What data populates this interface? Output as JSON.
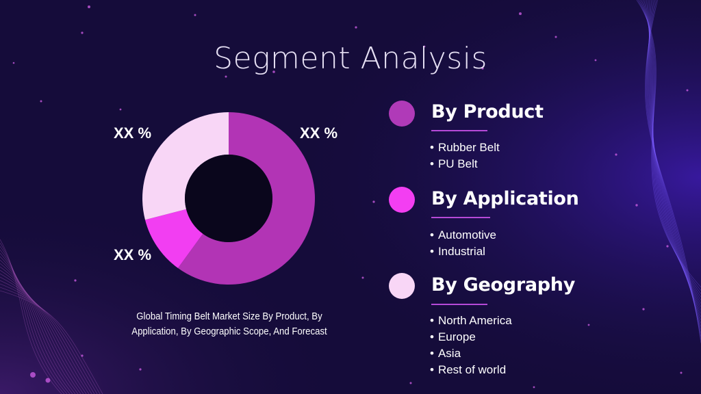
{
  "title": "Segment Analysis",
  "chart_data": {
    "type": "pie",
    "subtype": "donut",
    "slices": [
      {
        "label": "XX %",
        "value": 60,
        "color": "#b234b5"
      },
      {
        "label": "XX %",
        "value": 11,
        "color": "#f23ef2"
      },
      {
        "label": "XX %",
        "value": 29,
        "color": "#f8d6f6"
      }
    ],
    "caption": "Global Timing Belt Market Size By Product, By Application, By Geographic Scope, And Forecast"
  },
  "segments": [
    {
      "heading": "By Product",
      "color": "#b03ab8",
      "items": [
        "Rubber Belt",
        "PU Belt"
      ]
    },
    {
      "heading": "By Application",
      "color": "#f33ef2",
      "items": [
        "Automotive",
        "Industrial"
      ]
    },
    {
      "heading": "By Geography",
      "color": "#f8d6f6",
      "items": [
        "North America",
        "Europe",
        "Asia",
        "Rest of world"
      ]
    }
  ],
  "colors": {
    "background": "#150c3a",
    "accent_line": "#b64ad8"
  }
}
